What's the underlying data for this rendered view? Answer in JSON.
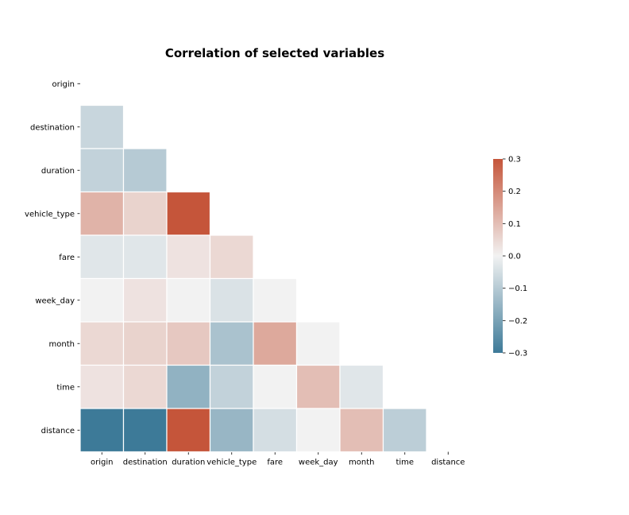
{
  "chart_data": {
    "type": "heatmap",
    "title": "Correlation of selected variables",
    "xlabel": "",
    "ylabel": "",
    "variables": [
      "origin",
      "destination",
      "duration",
      "vehicle_type",
      "fare",
      "week_day",
      "month",
      "time",
      "distance"
    ],
    "mask": "upper-triangle-including-diagonal",
    "values": [
      [
        null,
        null,
        null,
        null,
        null,
        null,
        null,
        null,
        null
      ],
      [
        -0.07,
        null,
        null,
        null,
        null,
        null,
        null,
        null,
        null
      ],
      [
        -0.08,
        -0.1,
        null,
        null,
        null,
        null,
        null,
        null,
        null
      ],
      [
        0.12,
        0.06,
        0.3,
        null,
        null,
        null,
        null,
        null,
        null
      ],
      [
        -0.03,
        -0.03,
        0.03,
        0.05,
        null,
        null,
        null,
        null,
        null
      ],
      [
        0.0,
        0.03,
        0.0,
        -0.04,
        0.0,
        null,
        null,
        null,
        null
      ],
      [
        0.05,
        0.06,
        0.08,
        -0.12,
        0.14,
        0.0,
        null,
        null,
        null
      ],
      [
        0.03,
        0.05,
        -0.16,
        -0.08,
        0.0,
        0.1,
        -0.03,
        null,
        null
      ],
      [
        -0.3,
        -0.3,
        0.3,
        -0.15,
        -0.05,
        0.0,
        0.1,
        -0.09,
        null
      ]
    ],
    "colorbar": {
      "min": -0.3,
      "max": 0.3,
      "ticks": [
        "0.3",
        "0.2",
        "0.1",
        "0.0",
        "−0.1",
        "−0.2",
        "−0.3"
      ],
      "tick_values": [
        0.3,
        0.2,
        0.1,
        0.0,
        -0.1,
        -0.2,
        -0.3
      ],
      "placement": "right"
    },
    "colormap": {
      "negative": "#3d7a98",
      "center": "#f2f2f2",
      "positive": "#c5553a"
    },
    "grid": false,
    "cell_border_color": "#ffffff"
  }
}
